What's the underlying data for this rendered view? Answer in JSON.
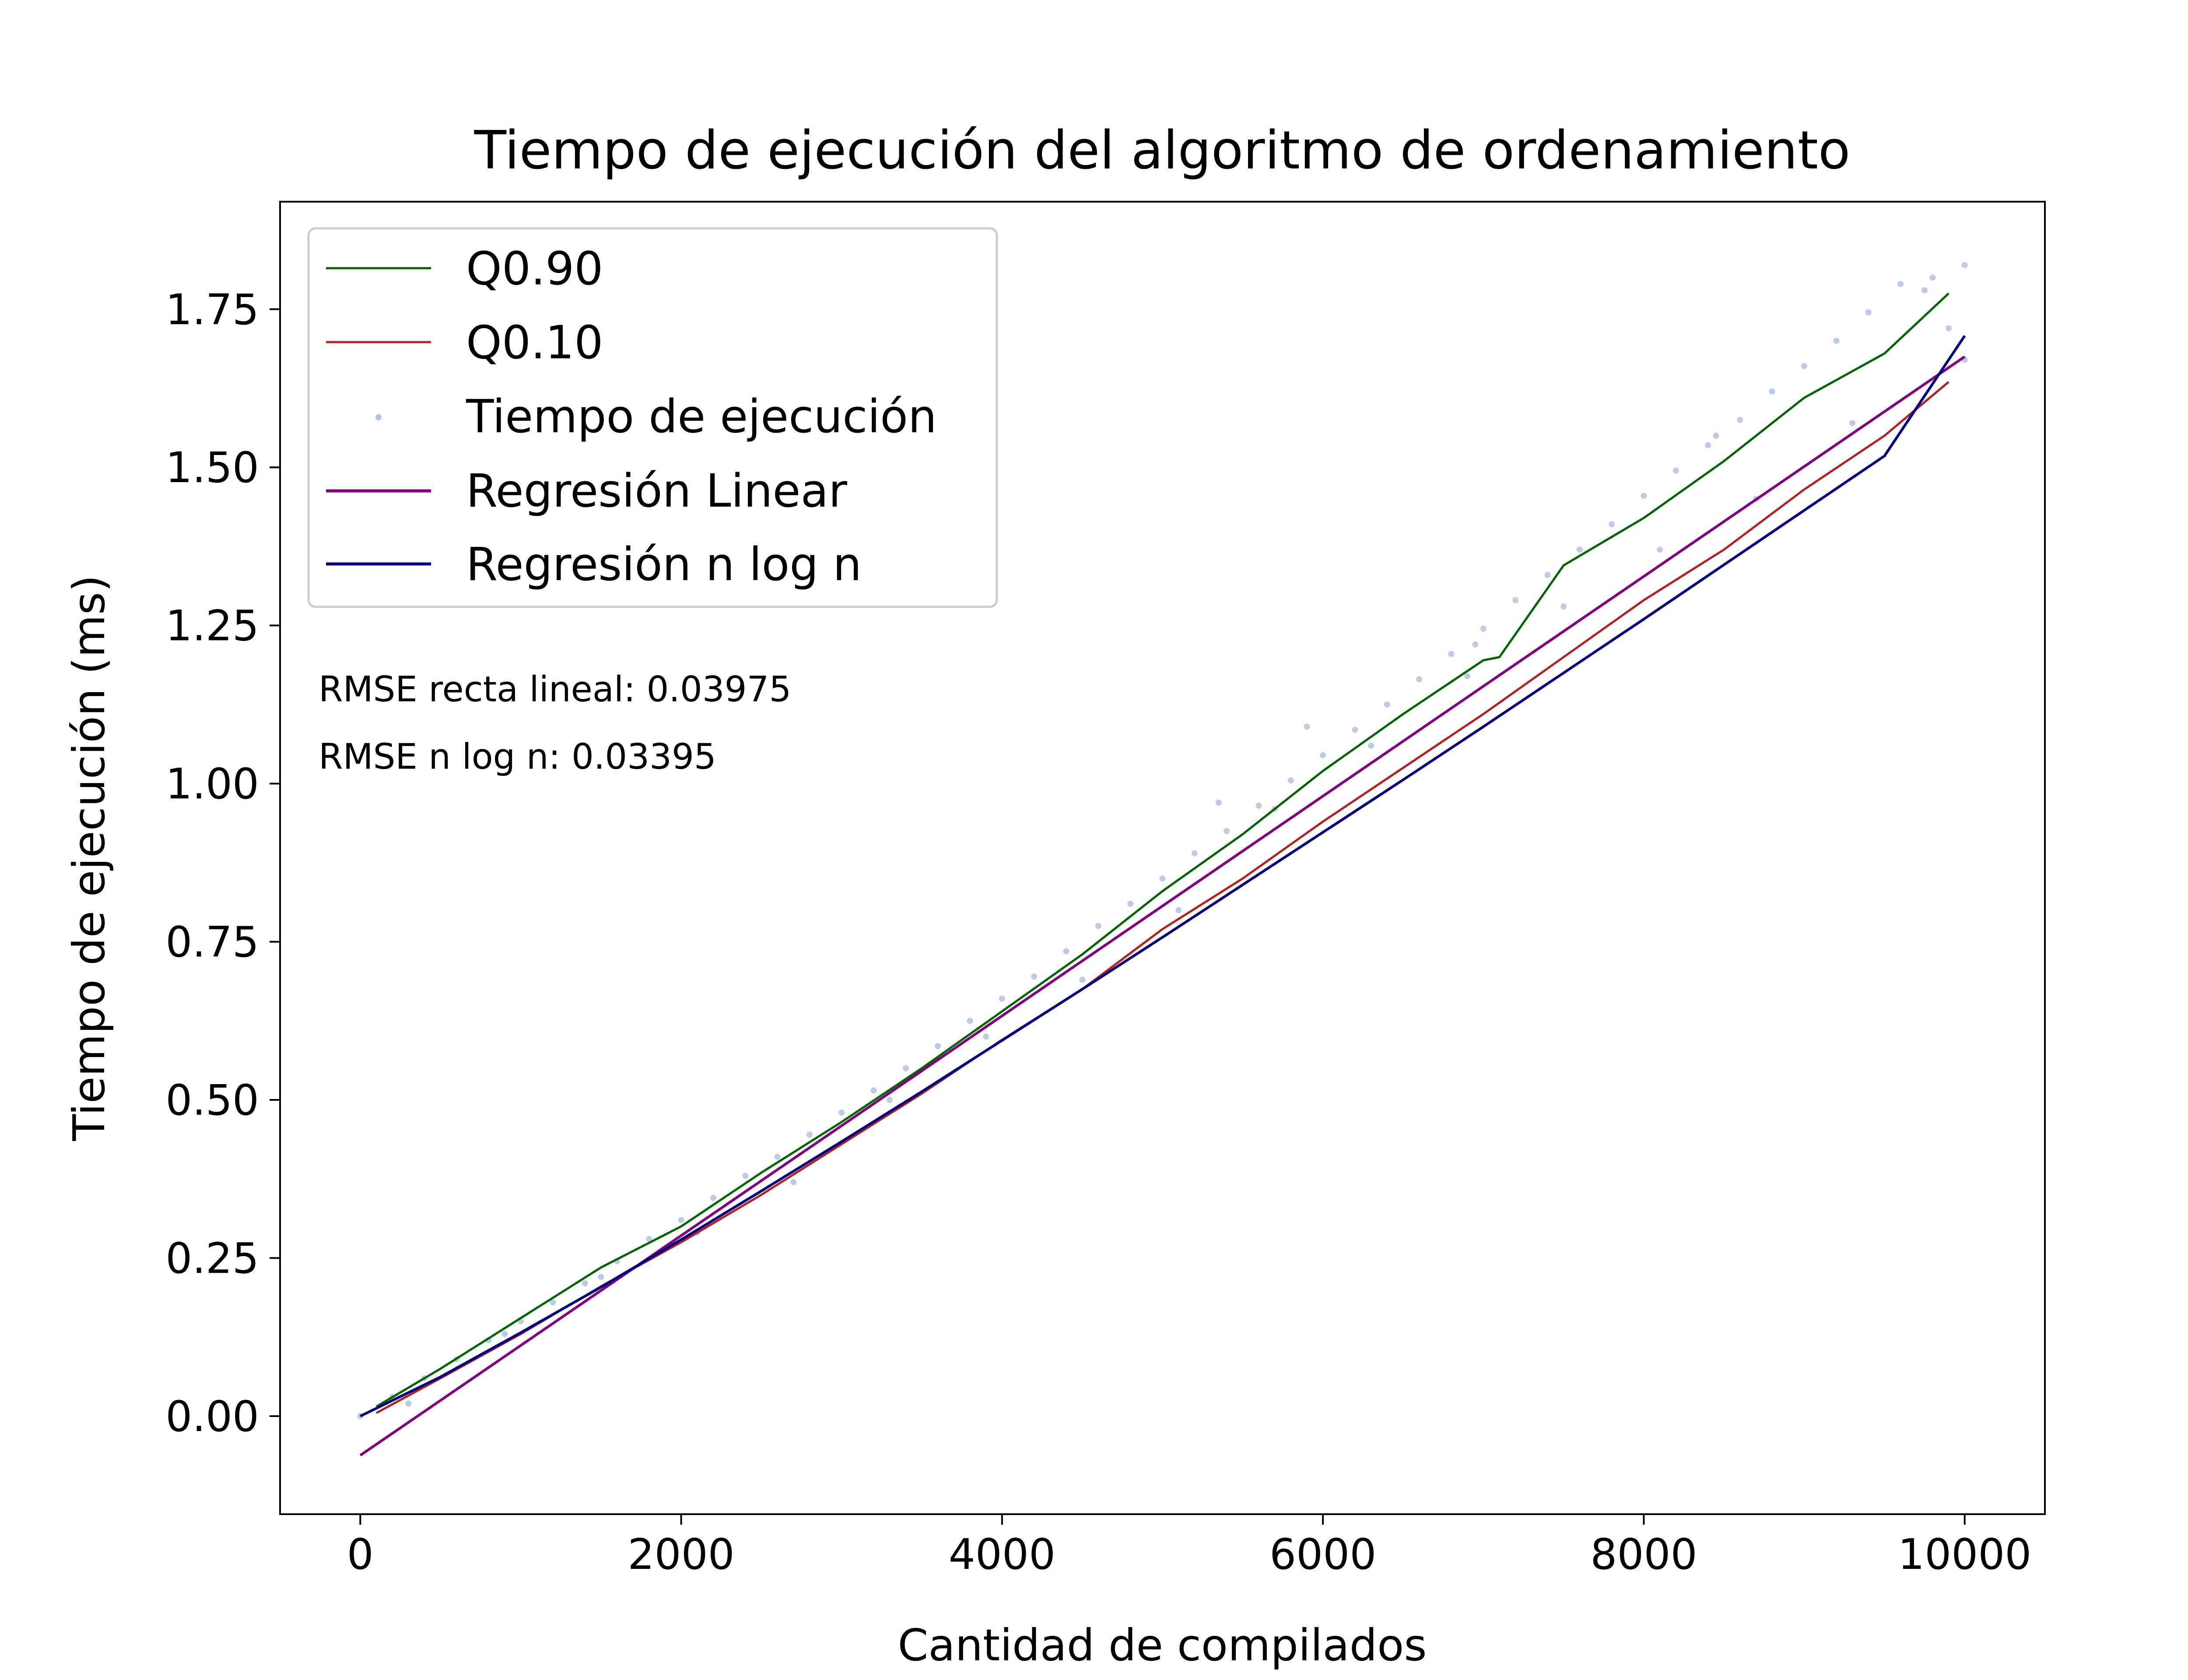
{
  "chart_data": {
    "type": "scatter",
    "title": "Tiempo de ejecución del algoritmo de ordenamiento",
    "xlabel": "Cantidad de compilados",
    "ylabel": "Tiempo de ejecución (ms)",
    "xlim": [
      -500,
      10500
    ],
    "ylim": [
      -0.155,
      1.92
    ],
    "xticks": [
      0,
      2000,
      4000,
      6000,
      8000,
      10000
    ],
    "xtick_labels": [
      "0",
      "2000",
      "4000",
      "6000",
      "8000",
      "10000"
    ],
    "yticks": [
      0.0,
      0.25,
      0.5,
      0.75,
      1.0,
      1.25,
      1.5,
      1.75
    ],
    "ytick_labels": [
      "0.00",
      "0.25",
      "0.50",
      "0.75",
      "1.00",
      "1.25",
      "1.50",
      "1.75"
    ],
    "grid": false,
    "legend_position": "top-left",
    "annotations": [
      {
        "text": "RMSE recta lineal: 0.03975",
        "color": "#8b008b"
      },
      {
        "text": "RMSE n log n: 0.03395",
        "color": "#00008b"
      }
    ],
    "series": [
      {
        "name": "Q0.90",
        "kind": "line",
        "color": "#006400",
        "x": [
          100,
          500,
          1000,
          1500,
          2000,
          2500,
          3000,
          3500,
          4000,
          4500,
          5000,
          5500,
          6000,
          6500,
          7000,
          7100,
          7500,
          8000,
          8500,
          9000,
          9500,
          9900
        ],
        "y": [
          0.015,
          0.075,
          0.155,
          0.235,
          0.3,
          0.385,
          0.465,
          0.55,
          0.64,
          0.73,
          0.83,
          0.92,
          1.02,
          1.11,
          1.195,
          1.2,
          1.345,
          1.42,
          1.51,
          1.61,
          1.68,
          1.775
        ]
      },
      {
        "name": "Q0.10",
        "kind": "line",
        "color": "#b22222",
        "x": [
          100,
          500,
          1000,
          1500,
          2000,
          2500,
          3000,
          3500,
          4000,
          4500,
          5000,
          5500,
          6000,
          6500,
          7000,
          7500,
          8000,
          8500,
          9000,
          9500,
          9900
        ],
        "y": [
          0.005,
          0.06,
          0.13,
          0.205,
          0.275,
          0.35,
          0.43,
          0.51,
          0.595,
          0.675,
          0.77,
          0.85,
          0.94,
          1.025,
          1.11,
          1.2,
          1.29,
          1.37,
          1.465,
          1.55,
          1.635
        ]
      },
      {
        "name": "Tiempo de ejecución",
        "kind": "scatter",
        "color": "#b0c4de",
        "x": [
          0,
          200,
          400,
          600,
          800,
          1000,
          1200,
          1400,
          1600,
          1800,
          2000,
          2200,
          2400,
          2600,
          2800,
          3000,
          3200,
          3400,
          3600,
          3800,
          4000,
          4200,
          4400,
          4600,
          4800,
          5000,
          5200,
          5400,
          5600,
          5800,
          6000,
          6200,
          6400,
          6600,
          6800,
          7000,
          7200,
          7400,
          7600,
          7800,
          8000,
          8200,
          8400,
          8600,
          8800,
          9000,
          9200,
          9400,
          9600,
          9800,
          10000,
          300,
          900,
          1500,
          2100,
          2700,
          3300,
          3900,
          4500,
          5100,
          5700,
          6300,
          6900,
          7500,
          8100,
          8700,
          9300,
          9900,
          5350,
          5900,
          6950,
          8450,
          9750,
          10000
        ],
        "y": [
          0.0,
          0.03,
          0.06,
          0.09,
          0.12,
          0.15,
          0.18,
          0.21,
          0.245,
          0.28,
          0.31,
          0.345,
          0.38,
          0.41,
          0.445,
          0.48,
          0.515,
          0.55,
          0.585,
          0.625,
          0.66,
          0.695,
          0.735,
          0.775,
          0.81,
          0.85,
          0.89,
          0.925,
          0.965,
          1.005,
          1.045,
          1.085,
          1.125,
          1.165,
          1.205,
          1.245,
          1.29,
          1.33,
          1.37,
          1.41,
          1.455,
          1.495,
          1.535,
          1.575,
          1.62,
          1.66,
          1.7,
          1.745,
          1.79,
          1.8,
          1.82,
          0.02,
          0.13,
          0.22,
          0.29,
          0.37,
          0.5,
          0.6,
          0.69,
          0.8,
          0.96,
          1.06,
          1.17,
          1.28,
          1.37,
          1.45,
          1.57,
          1.72,
          0.97,
          1.09,
          1.22,
          1.55,
          1.78,
          1.67
        ]
      },
      {
        "name": "Regresión Linear",
        "kind": "line",
        "color": "#800080",
        "x": [
          0,
          10000
        ],
        "y": [
          -0.062,
          1.675
        ]
      },
      {
        "name": "Regresión n log n",
        "kind": "line",
        "color": "#000080",
        "x": [
          0,
          500,
          1000,
          1500,
          2000,
          2500,
          3000,
          3500,
          4000,
          4500,
          5000,
          5500,
          6000,
          6500,
          7000,
          7500,
          8000,
          8500,
          9000,
          9500,
          10000
        ],
        "y": [
          0.0,
          0.062,
          0.132,
          0.204,
          0.279,
          0.356,
          0.434,
          0.513,
          0.594,
          0.675,
          0.757,
          0.84,
          0.923,
          1.006,
          1.09,
          1.175,
          1.26,
          1.346,
          1.432,
          1.518,
          1.708
        ]
      }
    ]
  }
}
